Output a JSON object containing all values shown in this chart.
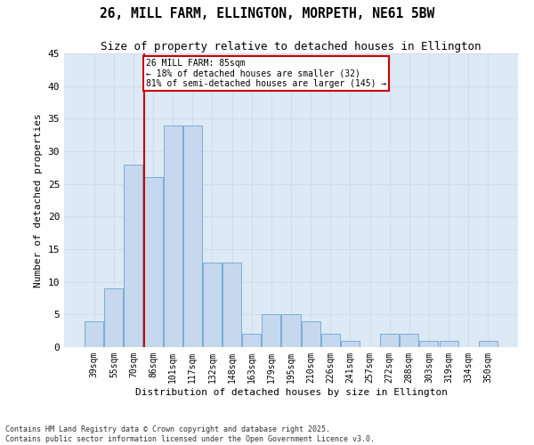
{
  "title": "26, MILL FARM, ELLINGTON, MORPETH, NE61 5BW",
  "subtitle": "Size of property relative to detached houses in Ellington",
  "xlabel": "Distribution of detached houses by size in Ellington",
  "ylabel": "Number of detached properties",
  "categories": [
    "39sqm",
    "55sqm",
    "70sqm",
    "86sqm",
    "101sqm",
    "117sqm",
    "132sqm",
    "148sqm",
    "163sqm",
    "179sqm",
    "195sqm",
    "210sqm",
    "226sqm",
    "241sqm",
    "257sqm",
    "272sqm",
    "288sqm",
    "303sqm",
    "319sqm",
    "334sqm",
    "350sqm"
  ],
  "values": [
    4,
    9,
    28,
    26,
    34,
    34,
    13,
    13,
    2,
    5,
    5,
    4,
    2,
    1,
    0,
    2,
    2,
    1,
    1,
    0,
    1
  ],
  "bar_color": "#c5d8ed",
  "bar_edge_color": "#7aadd4",
  "vline_color": "#cc0000",
  "annotation_text": "26 MILL FARM: 85sqm\n← 18% of detached houses are smaller (32)\n81% of semi-detached houses are larger (145) →",
  "annotation_box_color": "#cc0000",
  "grid_color": "#d0dce8",
  "background_color": "#ddeaf6",
  "ylim": [
    0,
    45
  ],
  "yticks": [
    0,
    5,
    10,
    15,
    20,
    25,
    30,
    35,
    40,
    45
  ],
  "footer_line1": "Contains HM Land Registry data © Crown copyright and database right 2025.",
  "footer_line2": "Contains public sector information licensed under the Open Government Licence v3.0."
}
